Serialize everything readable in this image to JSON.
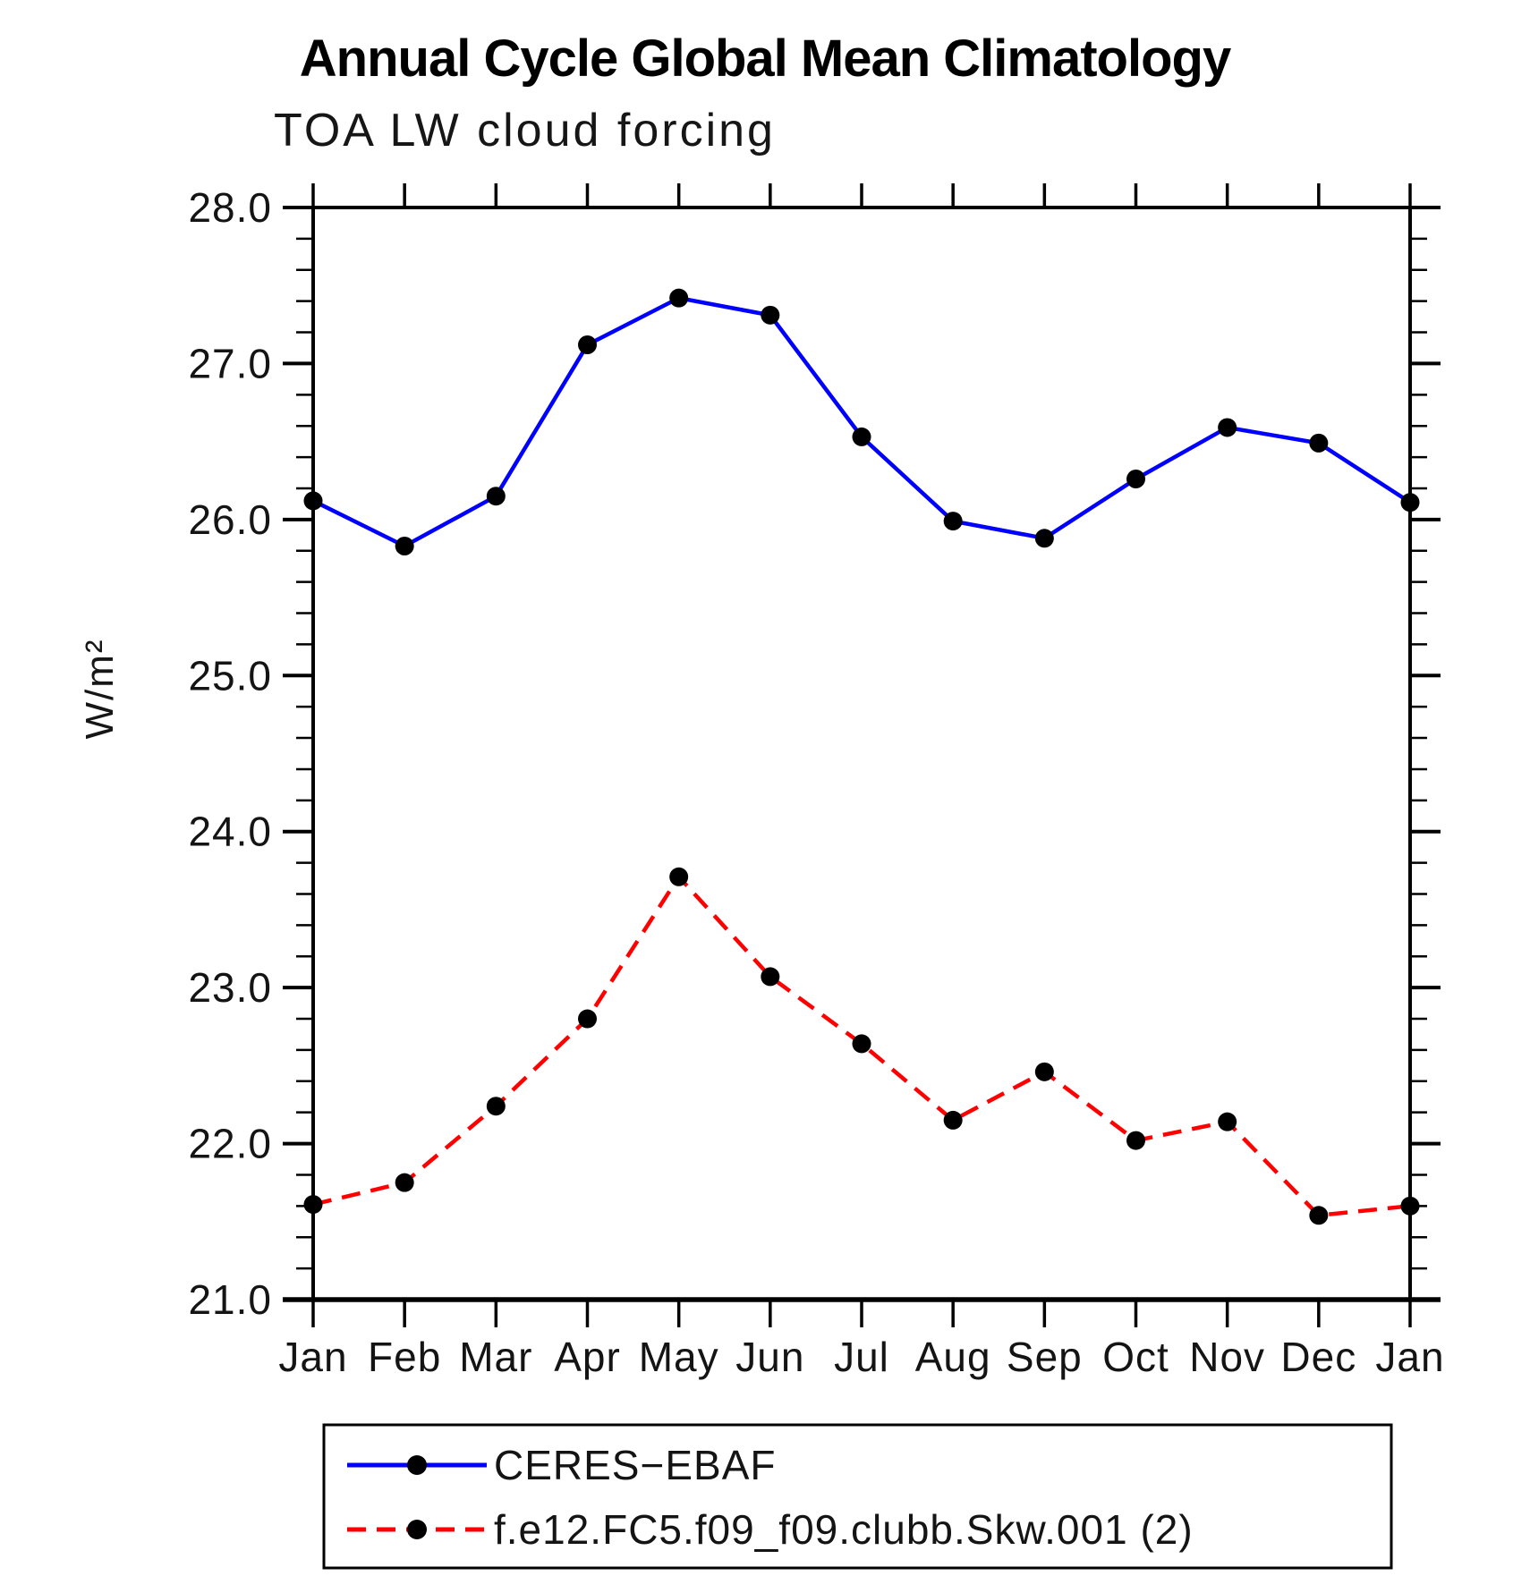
{
  "figure": {
    "title": "Annual Cycle Global Mean Climatology",
    "subtitle": "TOA LW cloud forcing"
  },
  "chart_data": {
    "type": "line",
    "title": "Annual Cycle Global Mean Climatology",
    "subtitle": "TOA LW cloud forcing",
    "xlabel": "",
    "ylabel": "W/m²",
    "ylim": [
      21.0,
      28.0
    ],
    "ytick_major": 1.0,
    "ytick_minor": 0.2,
    "ytick_labels": [
      "21.0",
      "22.0",
      "23.0",
      "24.0",
      "25.0",
      "26.0",
      "27.0",
      "28.0"
    ],
    "categories": [
      "Jan",
      "Feb",
      "Mar",
      "Apr",
      "May",
      "Jun",
      "Jul",
      "Aug",
      "Sep",
      "Oct",
      "Nov",
      "Dec",
      "Jan"
    ],
    "grid": false,
    "legend_position": "bottom",
    "colors": {
      "axis": "#000000",
      "ceres_line": "#0000ff",
      "model_line": "#ff0000",
      "marker": "#000000"
    },
    "series": [
      {
        "name": "CERES−EBAF",
        "color": "#0000ff",
        "line_style": "solid",
        "marker": "circle",
        "marker_color": "#000000",
        "values": [
          26.12,
          25.83,
          26.15,
          27.12,
          27.42,
          27.31,
          26.53,
          25.99,
          25.88,
          26.26,
          26.59,
          26.49,
          26.11
        ]
      },
      {
        "name": "f.e12.FC5.f09_f09.clubb.Skw.001 (2)",
        "color": "#ff0000",
        "line_style": "dashed",
        "marker": "circle",
        "marker_color": "#000000",
        "values": [
          21.61,
          21.75,
          22.24,
          22.8,
          23.71,
          23.07,
          22.64,
          22.15,
          22.46,
          22.02,
          22.14,
          21.54,
          21.6
        ]
      }
    ]
  }
}
